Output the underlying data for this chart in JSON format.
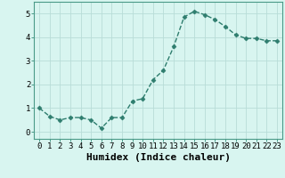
{
  "x": [
    0,
    1,
    2,
    3,
    4,
    5,
    6,
    7,
    8,
    9,
    10,
    11,
    12,
    13,
    14,
    15,
    16,
    17,
    18,
    19,
    20,
    21,
    22,
    23
  ],
  "y": [
    1.0,
    0.65,
    0.5,
    0.6,
    0.6,
    0.5,
    0.15,
    0.6,
    0.6,
    1.3,
    1.4,
    2.2,
    2.6,
    3.6,
    4.85,
    5.1,
    4.95,
    4.75,
    4.45,
    4.1,
    3.95,
    3.95,
    3.85,
    3.85
  ],
  "line_color": "#2e7d6e",
  "marker": "D",
  "marker_size": 2.5,
  "xlabel": "Humidex (Indice chaleur)",
  "ylim": [
    -0.3,
    5.5
  ],
  "xlim": [
    -0.5,
    23.5
  ],
  "bg_color": "#d8f5f0",
  "grid_color": "#b8ddd8",
  "tick_label_fontsize": 6.5,
  "xlabel_fontsize": 8,
  "xticks": [
    0,
    1,
    2,
    3,
    4,
    5,
    6,
    7,
    8,
    9,
    10,
    11,
    12,
    13,
    14,
    15,
    16,
    17,
    18,
    19,
    20,
    21,
    22,
    23
  ],
  "yticks": [
    0,
    1,
    2,
    3,
    4,
    5
  ],
  "spine_color": "#4a9a88",
  "line_width": 1.0
}
